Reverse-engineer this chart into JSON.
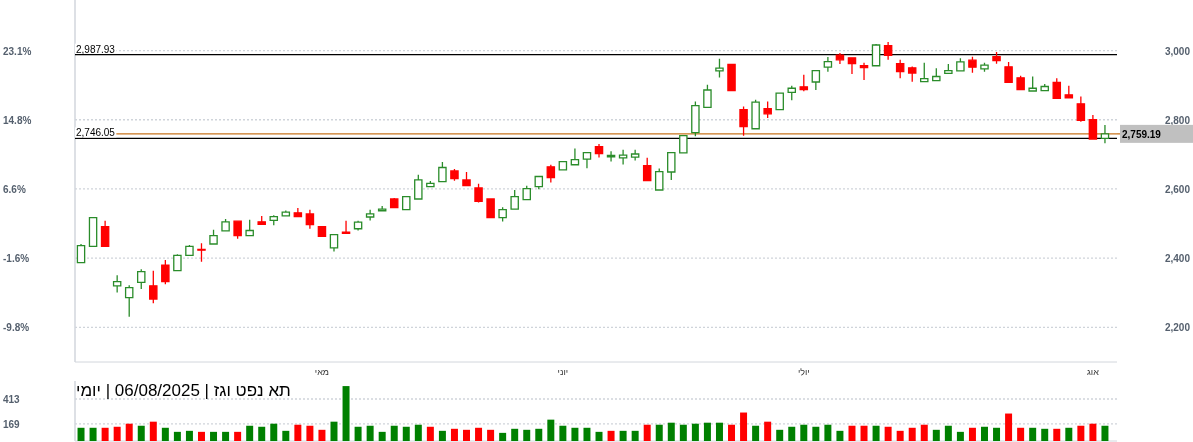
{
  "chart_data": [
    {
      "type": "candlestick",
      "categories": [
        null,
        null,
        null,
        null,
        null,
        null,
        null,
        null,
        null,
        null,
        null,
        null,
        null,
        null,
        null,
        null,
        null,
        null,
        null,
        null,
        "מאי",
        null,
        null,
        null,
        null,
        null,
        null,
        null,
        null,
        null,
        null,
        null,
        null,
        null,
        null,
        null,
        null,
        null,
        null,
        null,
        "יוני",
        null,
        null,
        null,
        null,
        null,
        null,
        null,
        null,
        null,
        null,
        null,
        null,
        null,
        null,
        null,
        null,
        null,
        null,
        null,
        "יולי",
        null,
        null,
        null,
        null,
        null,
        null,
        null,
        null,
        null,
        null,
        null,
        null,
        null,
        null,
        null,
        null,
        null,
        null,
        null,
        null,
        null,
        null,
        null,
        "אוג",
        null
      ],
      "ohlc": [
        [
          2387,
          2441,
          2386,
          2436
        ],
        [
          2434,
          2519,
          2432,
          2517
        ],
        [
          2491,
          2508,
          2434,
          2434
        ],
        [
          2320,
          2351,
          2301,
          2332
        ],
        [
          2286,
          2322,
          2231,
          2315
        ],
        [
          2330,
          2368,
          2311,
          2361
        ],
        [
          2320,
          2364,
          2270,
          2282
        ],
        [
          2380,
          2395,
          2325,
          2332
        ],
        [
          2364,
          2411,
          2364,
          2408
        ],
        [
          2408,
          2438,
          2406,
          2434
        ],
        [
          2425,
          2443,
          2390,
          2423
        ],
        [
          2441,
          2482,
          2440,
          2465
        ],
        [
          2479,
          2513,
          2479,
          2505
        ],
        [
          2507,
          2507,
          2456,
          2465
        ],
        [
          2465,
          2511,
          2464,
          2480
        ],
        [
          2505,
          2522,
          2498,
          2498
        ],
        [
          2509,
          2524,
          2495,
          2520
        ],
        [
          2522,
          2538,
          2522,
          2533
        ],
        [
          2531,
          2545,
          2520,
          2520
        ],
        [
          2528,
          2540,
          2485,
          2497
        ],
        [
          2491,
          2491,
          2463,
          2463
        ],
        [
          2430,
          2469,
          2419,
          2468
        ],
        [
          2475,
          2508,
          2472,
          2472
        ],
        [
          2485,
          2508,
          2480,
          2504
        ],
        [
          2519,
          2540,
          2509,
          2528
        ],
        [
          2537,
          2551,
          2536,
          2542
        ],
        [
          2571,
          2574,
          2546,
          2546
        ],
        [
          2540,
          2578,
          2539,
          2578
        ],
        [
          2571,
          2641,
          2570,
          2626
        ],
        [
          2607,
          2623,
          2607,
          2616
        ],
        [
          2621,
          2678,
          2620,
          2662
        ],
        [
          2652,
          2658,
          2624,
          2630
        ],
        [
          2626,
          2649,
          2610,
          2610
        ],
        [
          2603,
          2615,
          2561,
          2564
        ],
        [
          2571,
          2571,
          2517,
          2517
        ],
        [
          2517,
          2547,
          2506,
          2540
        ],
        [
          2542,
          2597,
          2541,
          2578
        ],
        [
          2569,
          2609,
          2568,
          2601
        ],
        [
          2607,
          2636,
          2599,
          2636
        ],
        [
          2664,
          2670,
          2619,
          2633
        ],
        [
          2655,
          2680,
          2655,
          2679
        ],
        [
          2670,
          2717,
          2669,
          2685
        ],
        [
          2686,
          2705,
          2660,
          2705
        ],
        [
          2722,
          2730,
          2691,
          2702
        ],
        [
          2693,
          2709,
          2679,
          2697
        ],
        [
          2690,
          2713,
          2671,
          2698
        ],
        [
          2692,
          2713,
          2682,
          2701
        ],
        [
          2667,
          2690,
          2624,
          2624
        ],
        [
          2597,
          2659,
          2595,
          2650
        ],
        [
          2649,
          2707,
          2626,
          2705
        ],
        [
          2704,
          2754,
          2704,
          2754
        ],
        [
          2763,
          2853,
          2752,
          2841
        ],
        [
          2836,
          2901,
          2836,
          2886
        ],
        [
          2941,
          2976,
          2922,
          2949
        ],
        [
          2960,
          2962,
          2882,
          2884
        ],
        [
          2829,
          2838,
          2754,
          2780
        ],
        [
          2774,
          2858,
          2773,
          2851
        ],
        [
          2832,
          2853,
          2805,
          2817
        ],
        [
          2829,
          2877,
          2828,
          2877
        ],
        [
          2879,
          2898,
          2856,
          2891
        ],
        [
          2895,
          2930,
          2882,
          2887
        ],
        [
          2909,
          2943,
          2886,
          2942
        ],
        [
          2952,
          2981,
          2939,
          2968
        ],
        [
          2987,
          2993,
          2961,
          2973
        ],
        [
          2979,
          2979,
          2932,
          2962
        ],
        [
          2956,
          2965,
          2915,
          2951
        ],
        [
          2956,
          3019,
          2955,
          3016
        ],
        [
          3014,
          3025,
          2973,
          2986
        ],
        [
          2962,
          2973,
          2920,
          2939
        ],
        [
          2950,
          2954,
          2910,
          2935
        ],
        [
          2910,
          2965,
          2909,
          2919
        ],
        [
          2913,
          2949,
          2913,
          2925
        ],
        [
          2934,
          2961,
          2933,
          2942
        ],
        [
          2941,
          2978,
          2941,
          2967
        ],
        [
          2972,
          2982,
          2936,
          2952
        ],
        [
          2947,
          2965,
          2939,
          2958
        ],
        [
          2982,
          2996,
          2962,
          2971
        ],
        [
          2953,
          2967,
          2907,
          2908
        ],
        [
          2921,
          2927,
          2887,
          2887
        ],
        [
          2883,
          2925,
          2882,
          2891
        ],
        [
          2884,
          2903,
          2884,
          2896
        ],
        [
          2908,
          2920,
          2860,
          2862
        ],
        [
          2872,
          2898,
          2862,
          2863
        ],
        [
          2846,
          2867,
          2794,
          2798
        ],
        [
          2800,
          2814,
          2743,
          2744
        ],
        [
          2746,
          2785,
          2732,
          2759
        ]
      ],
      "colors": [
        "#2a8c2a",
        "#2a8c2a",
        "#ff0000",
        "#2a8c2a",
        "#2a8c2a",
        "#2a8c2a",
        "#ff0000",
        "#ff0000",
        "#2a8c2a",
        "#2a8c2a",
        "#ff0000",
        "#2a8c2a",
        "#2a8c2a",
        "#ff0000",
        "#2a8c2a",
        "#ff0000",
        "#2a8c2a",
        "#2a8c2a",
        "#ff0000",
        "#ff0000",
        "#ff0000",
        "#2a8c2a",
        "#ff0000",
        "#2a8c2a",
        "#2a8c2a",
        "#2a8c2a",
        "#ff0000",
        "#2a8c2a",
        "#2a8c2a",
        "#2a8c2a",
        "#2a8c2a",
        "#ff0000",
        "#ff0000",
        "#ff0000",
        "#ff0000",
        "#2a8c2a",
        "#2a8c2a",
        "#2a8c2a",
        "#2a8c2a",
        "#ff0000",
        "#2a8c2a",
        "#2a8c2a",
        "#2a8c2a",
        "#ff0000",
        "#2a8c2a",
        "#2a8c2a",
        "#2a8c2a",
        "#ff0000",
        "#2a8c2a",
        "#2a8c2a",
        "#2a8c2a",
        "#2a8c2a",
        "#2a8c2a",
        "#2a8c2a",
        "#ff0000",
        "#ff0000",
        "#2a8c2a",
        "#ff0000",
        "#2a8c2a",
        "#2a8c2a",
        "#ff0000",
        "#2a8c2a",
        "#2a8c2a",
        "#ff0000",
        "#ff0000",
        "#ff0000",
        "#2a8c2a",
        "#ff0000",
        "#ff0000",
        "#ff0000",
        "#2a8c2a",
        "#2a8c2a",
        "#2a8c2a",
        "#2a8c2a",
        "#ff0000",
        "#2a8c2a",
        "#ff0000",
        "#ff0000",
        "#ff0000",
        "#2a8c2a",
        "#2a8c2a",
        "#ff0000",
        "#ff0000",
        "#ff0000",
        "#ff0000",
        "#2a8c2a"
      ],
      "ylim": [
        2100,
        3146
      ],
      "yticks": [
        {
          "value": 2200,
          "label": "2,200"
        },
        {
          "value": 2400,
          "label": "2,400"
        },
        {
          "value": 2600,
          "label": "2,600"
        },
        {
          "value": 2800,
          "label": "2,800"
        },
        {
          "value": 3000,
          "label": "3,000"
        }
      ],
      "y2lim": [
        -13.9,
        29.1
      ],
      "y2ticks": [
        {
          "value": -9.8,
          "label": "-9.8%"
        },
        {
          "value": -1.6,
          "label": "-1.6%"
        },
        {
          "value": 6.6,
          "label": "6.6%"
        },
        {
          "value": 14.8,
          "label": "14.8%"
        },
        {
          "value": 23.1,
          "label": "23.1%"
        }
      ],
      "ref_lines": [
        {
          "axis": "y",
          "value": 2987.93,
          "label": "2,987.93",
          "color": "#000000"
        },
        {
          "axis": "y",
          "value": 2746.05,
          "label": "2,746.05",
          "color": "#000000"
        },
        {
          "axis": "y",
          "value": 2759.19,
          "label": "2,759.19",
          "color": "#c8741e"
        }
      ],
      "grid": "y"
    },
    {
      "type": "bar",
      "title": "תא נפט וגז | 06/08/2025 | יומי",
      "categories": [
        null,
        null,
        null,
        null,
        null,
        null,
        null,
        null,
        null,
        null,
        null,
        null,
        null,
        null,
        null,
        null,
        null,
        null,
        null,
        null,
        null,
        null,
        null,
        null,
        null,
        null,
        null,
        null,
        null,
        null,
        null,
        null,
        null,
        null,
        null,
        null,
        null,
        null,
        null,
        null,
        null,
        null,
        null,
        null,
        null,
        null,
        null,
        null,
        null,
        null,
        null,
        null,
        null,
        null,
        null,
        null,
        null,
        null,
        null,
        null,
        null,
        null,
        null,
        null,
        null,
        null,
        null,
        null,
        null,
        null,
        null,
        null,
        null,
        null,
        null,
        null,
        null,
        null,
        null,
        null,
        null,
        null,
        null,
        null,
        null,
        null
      ],
      "values": [
        130,
        130,
        130,
        140,
        170,
        150,
        190,
        130,
        90,
        100,
        90,
        90,
        90,
        90,
        150,
        140,
        170,
        100,
        160,
        150,
        110,
        190,
        540,
        140,
        150,
        90,
        150,
        140,
        160,
        140,
        100,
        120,
        110,
        130,
        110,
        80,
        120,
        110,
        120,
        210,
        150,
        130,
        130,
        90,
        100,
        100,
        100,
        160,
        160,
        180,
        160,
        170,
        180,
        180,
        160,
        280,
        150,
        190,
        110,
        140,
        160,
        140,
        160,
        100,
        150,
        150,
        150,
        140,
        100,
        130,
        160,
        110,
        150,
        90,
        130,
        140,
        130,
        270,
        130,
        130,
        120,
        120,
        130,
        150,
        170,
        150
      ],
      "colors": [
        "#008000",
        "#008000",
        "#ff0000",
        "#ff0000",
        "#ff0000",
        "#008000",
        "#ff0000",
        "#008000",
        "#008000",
        "#008000",
        "#ff0000",
        "#008000",
        "#008000",
        "#ff0000",
        "#008000",
        "#008000",
        "#008000",
        "#008000",
        "#ff0000",
        "#ff0000",
        "#ff0000",
        "#008000",
        "#008000",
        "#008000",
        "#008000",
        "#008000",
        "#008000",
        "#008000",
        "#008000",
        "#ff0000",
        "#008000",
        "#ff0000",
        "#ff0000",
        "#ff0000",
        "#ff0000",
        "#008000",
        "#008000",
        "#008000",
        "#008000",
        "#008000",
        "#008000",
        "#008000",
        "#008000",
        "#008000",
        "#ff0000",
        "#008000",
        "#008000",
        "#ff0000",
        "#008000",
        "#008000",
        "#008000",
        "#008000",
        "#008000",
        "#008000",
        "#ff0000",
        "#ff0000",
        "#008000",
        "#ff0000",
        "#008000",
        "#008000",
        "#008000",
        "#008000",
        "#008000",
        "#008000",
        "#ff0000",
        "#ff0000",
        "#008000",
        "#ff0000",
        "#ff0000",
        "#ff0000",
        "#ff0000",
        "#008000",
        "#008000",
        "#008000",
        "#ff0000",
        "#008000",
        "#008000",
        "#ff0000",
        "#ff0000",
        "#008000",
        "#008000",
        "#ff0000",
        "#008000",
        "#ff0000",
        "#ff0000",
        "#008000"
      ],
      "ylim": [
        0,
        590
      ],
      "yticks": [
        169,
        413
      ],
      "grid": "y",
      "tick_labels": "y"
    }
  ]
}
